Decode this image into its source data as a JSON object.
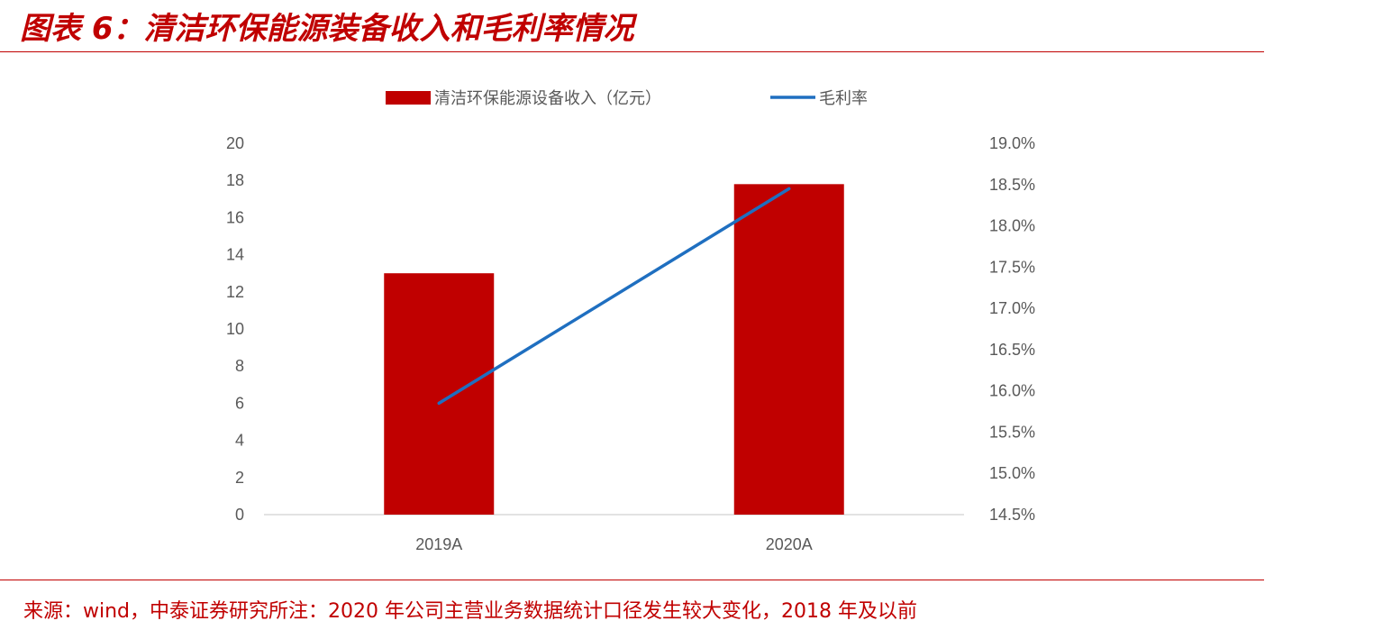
{
  "title": "图表 6：清洁环保能源装备收入和毛利率情况",
  "source_note": "来源：wind，中泰证券研究所注：2020 年公司主营业务数据统计口径发生较大变化，2018 年及以前",
  "colors": {
    "accent": "#c00000",
    "bar": "#c00000",
    "line": "#1f6fc0",
    "axis_text": "#595959"
  },
  "chart_data": {
    "type": "bar",
    "categories": [
      "2019A",
      "2020A"
    ],
    "series": [
      {
        "name": "清洁环保能源设备收入（亿元）",
        "type": "bar",
        "axis": "left",
        "values": [
          13.0,
          17.8
        ]
      },
      {
        "name": "毛利率",
        "type": "line",
        "axis": "right",
        "values": [
          15.85,
          18.45
        ]
      }
    ],
    "ylim_left": [
      0,
      20
    ],
    "yticks_left": [
      "0",
      "2",
      "4",
      "6",
      "8",
      "10",
      "12",
      "14",
      "16",
      "18",
      "20"
    ],
    "ylim_right": [
      14.5,
      19.0
    ],
    "yticks_right": [
      "14.5%",
      "15.0%",
      "15.5%",
      "16.0%",
      "16.5%",
      "17.0%",
      "17.5%",
      "18.0%",
      "18.5%",
      "19.0%"
    ],
    "grid": false,
    "legend": "top"
  }
}
